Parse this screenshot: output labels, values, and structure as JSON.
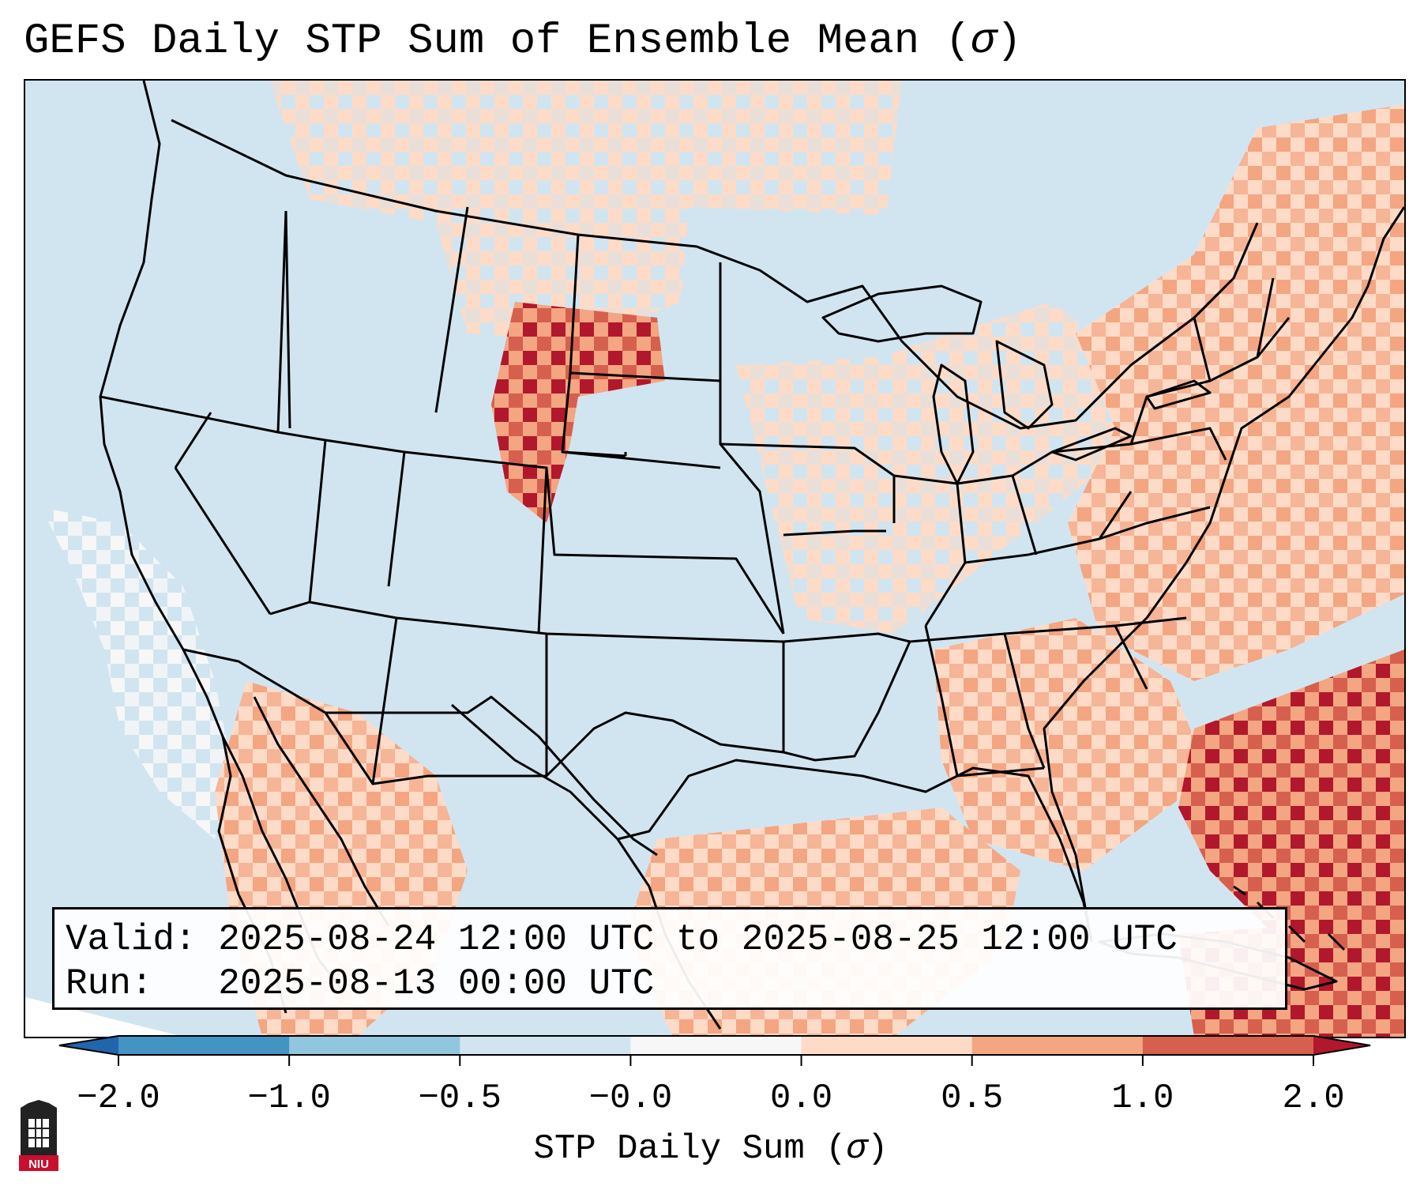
{
  "title": {
    "text": "GEFS Daily STP Sum of Ensemble Mean (",
    "symbol": "σ",
    "close": ")"
  },
  "info": {
    "valid_label": "Valid:",
    "valid_value": "2025-08-24 12:00 UTC to 2025-08-25 12:00 UTC",
    "run_label": "Run:",
    "run_value": "2025-08-13 00:00 UTC"
  },
  "colorbar": {
    "ticks": [
      "−2.0",
      "−1.0",
      "−0.5",
      "−0.0",
      "0.0",
      "0.5",
      "1.0",
      "2.0"
    ],
    "bins": [
      {
        "color": "#2166ac"
      },
      {
        "color": "#4393c3"
      },
      {
        "color": "#92c5de"
      },
      {
        "color": "#d1e5f0"
      },
      {
        "color": "#f7f7f7"
      },
      {
        "color": "#fddbc7"
      },
      {
        "color": "#f4a582"
      },
      {
        "color": "#d6604d"
      },
      {
        "color": "#b2182b"
      }
    ],
    "label_text": "STP Daily Sum (",
    "label_symbol": "σ",
    "label_close": ")"
  },
  "map": {
    "ocean_color": "#d1e5f0",
    "border_color": "#000000",
    "anomaly_regions": [
      {
        "name": "northern-plains",
        "level": "light"
      },
      {
        "name": "black-hills-wyoming",
        "level": "strong"
      },
      {
        "name": "great-lakes",
        "level": "light"
      },
      {
        "name": "mid-atlantic-northeast",
        "level": "moderate"
      },
      {
        "name": "southeast-coast",
        "level": "moderate"
      },
      {
        "name": "western-atlantic",
        "level": "strong"
      },
      {
        "name": "caribbean",
        "level": "strong"
      },
      {
        "name": "gulf-of-mexico",
        "level": "moderate"
      },
      {
        "name": "baja-mexico",
        "level": "moderate"
      },
      {
        "name": "pacific-coast",
        "level": "neutral"
      }
    ]
  },
  "logo": {
    "text": "NIU"
  }
}
